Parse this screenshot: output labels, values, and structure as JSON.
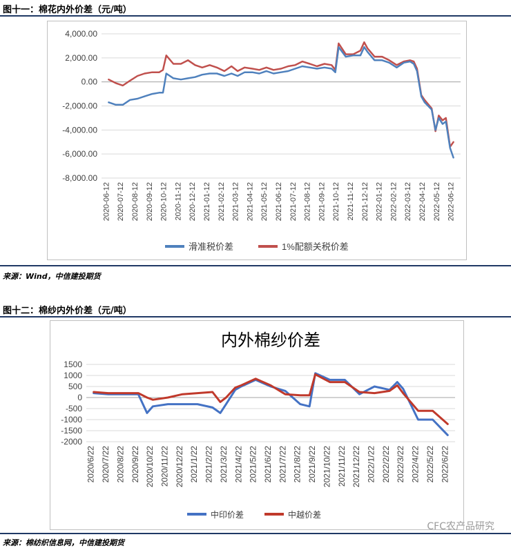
{
  "figures": [
    {
      "caption": "图十一：棉花内外价差（元/吨）",
      "source": "来源：Wind，中信建投期货"
    },
    {
      "caption": "图十二：棉纱内外价差（元/吨）",
      "source": "来源：棉纺织信息网，中信建投期货"
    }
  ],
  "watermark": "CFC农产品研究",
  "chart_data": [
    {
      "type": "line",
      "title": "",
      "xlabel": "",
      "ylabel": "",
      "ylim": [
        -8000,
        4000
      ],
      "y_ticks": [
        "4,000.00",
        "2,000.00",
        "0.00",
        "-2,000.00",
        "-4,000.00",
        "-6,000.00",
        "-8,000.00"
      ],
      "x_ticks": [
        "2020-06-12",
        "2020-07-12",
        "2020-08-12",
        "2020-09-12",
        "2020-10-12",
        "2020-11-12",
        "2020-12-12",
        "2021-01-12",
        "2021-02-12",
        "2021-03-12",
        "2021-04-12",
        "2021-05-12",
        "2021-06-12",
        "2021-07-12",
        "2021-08-12",
        "2021-09-12",
        "2021-10-12",
        "2021-11-12",
        "2021-12-12",
        "2022-01-12",
        "2022-02-12",
        "2022-03-12",
        "2022-04-12",
        "2022-05-12",
        "2022-06-12"
      ],
      "grid": "horizontal",
      "legend": "bottom",
      "colors": [
        "#4f81bd",
        "#c0504d"
      ],
      "series": [
        {
          "name": "滑准税价差",
          "x": [
            "2020-06-12",
            "2020-06-27",
            "2020-07-12",
            "2020-07-27",
            "2020-08-12",
            "2020-08-27",
            "2020-09-12",
            "2020-09-27",
            "2020-10-05",
            "2020-10-12",
            "2020-10-27",
            "2020-11-12",
            "2020-11-27",
            "2020-12-12",
            "2020-12-27",
            "2021-01-12",
            "2021-01-27",
            "2021-02-12",
            "2021-02-27",
            "2021-03-12",
            "2021-03-27",
            "2021-04-12",
            "2021-04-27",
            "2021-05-12",
            "2021-05-27",
            "2021-06-12",
            "2021-06-27",
            "2021-07-12",
            "2021-07-27",
            "2021-08-12",
            "2021-08-27",
            "2021-09-12",
            "2021-09-27",
            "2021-10-05",
            "2021-10-12",
            "2021-10-27",
            "2021-11-12",
            "2021-11-27",
            "2021-12-05",
            "2021-12-12",
            "2021-12-27",
            "2022-01-12",
            "2022-01-27",
            "2022-02-12",
            "2022-02-27",
            "2022-03-12",
            "2022-03-20",
            "2022-03-27",
            "2022-04-05",
            "2022-04-12",
            "2022-04-27",
            "2022-05-05",
            "2022-05-12",
            "2022-05-20",
            "2022-05-27",
            "2022-06-05",
            "2022-06-12"
          ],
          "values": [
            -1700,
            -1900,
            -1900,
            -1500,
            -1400,
            -1200,
            -1000,
            -900,
            -900,
            700,
            300,
            200,
            300,
            400,
            600,
            700,
            700,
            500,
            700,
            500,
            800,
            800,
            700,
            900,
            700,
            800,
            900,
            1100,
            1300,
            1200,
            1100,
            1200,
            1100,
            800,
            2900,
            2100,
            2200,
            2200,
            2900,
            2500,
            1800,
            1800,
            1600,
            1200,
            1600,
            1700,
            1500,
            900,
            -1200,
            -1700,
            -2300,
            -4000,
            -3000,
            -3500,
            -3300,
            -5500,
            -6300
          ]
        },
        {
          "name": "1%配额关税价差",
          "x": [
            "2020-06-12",
            "2020-06-27",
            "2020-07-12",
            "2020-07-27",
            "2020-08-12",
            "2020-08-27",
            "2020-09-12",
            "2020-09-27",
            "2020-10-05",
            "2020-10-12",
            "2020-10-27",
            "2020-11-12",
            "2020-11-27",
            "2020-12-12",
            "2020-12-27",
            "2021-01-12",
            "2021-01-27",
            "2021-02-12",
            "2021-02-27",
            "2021-03-12",
            "2021-03-27",
            "2021-04-12",
            "2021-04-27",
            "2021-05-12",
            "2021-05-27",
            "2021-06-12",
            "2021-06-27",
            "2021-07-12",
            "2021-07-27",
            "2021-08-12",
            "2021-08-27",
            "2021-09-12",
            "2021-09-27",
            "2021-10-05",
            "2021-10-12",
            "2021-10-27",
            "2021-11-12",
            "2021-11-27",
            "2021-12-05",
            "2021-12-12",
            "2021-12-27",
            "2022-01-12",
            "2022-01-27",
            "2022-02-12",
            "2022-02-27",
            "2022-03-12",
            "2022-03-20",
            "2022-03-27",
            "2022-04-05",
            "2022-04-12",
            "2022-04-27",
            "2022-05-05",
            "2022-05-12",
            "2022-05-20",
            "2022-05-27",
            "2022-06-05",
            "2022-06-12"
          ],
          "values": [
            200,
            -100,
            -300,
            100,
            500,
            700,
            800,
            800,
            1000,
            2200,
            1500,
            1500,
            1800,
            1400,
            1200,
            1400,
            1200,
            900,
            1300,
            900,
            1200,
            1100,
            1000,
            1200,
            1000,
            1100,
            1300,
            1400,
            1700,
            1500,
            1300,
            1500,
            1400,
            1000,
            3200,
            2300,
            2300,
            2600,
            3300,
            2800,
            2100,
            2100,
            1800,
            1400,
            1700,
            1800,
            1700,
            1100,
            -1100,
            -1500,
            -2200,
            -4100,
            -2800,
            -3200,
            -3000,
            -5400,
            -5000
          ]
        }
      ]
    },
    {
      "type": "line",
      "title": "内外棉纱价差",
      "xlabel": "",
      "ylabel": "",
      "ylim": [
        -2000,
        1500
      ],
      "y_ticks": [
        "1500",
        "1000",
        "500",
        "0",
        "-500",
        "-1000",
        "-1500",
        "-2000"
      ],
      "x_ticks": [
        "2020/6/22",
        "2020/7/22",
        "2020/8/22",
        "2020/9/22",
        "2020/10/22",
        "2020/11/22",
        "2020/12/22",
        "2021/1/22",
        "2021/2/22",
        "2021/3/22",
        "2021/4/22",
        "2021/5/22",
        "2021/6/22",
        "2021/7/22",
        "2021/8/22",
        "2021/9/22",
        "2021/10/22",
        "2021/11/22",
        "2021/12/22",
        "2022/1/22",
        "2022/2/22",
        "2022/3/22",
        "2022/4/22",
        "2022/5/22",
        "2022/6/22"
      ],
      "grid": "horizontal",
      "legend": "bottom",
      "colors": [
        "#4472c4",
        "#c0392b"
      ],
      "series": [
        {
          "name": "中印价差",
          "x": [
            "2020-06-22",
            "2020-07-22",
            "2020-08-22",
            "2020-09-22",
            "2020-10-10",
            "2020-10-22",
            "2020-11-22",
            "2020-12-22",
            "2021-01-22",
            "2021-02-22",
            "2021-03-10",
            "2021-03-22",
            "2021-04-10",
            "2021-04-22",
            "2021-05-22",
            "2021-06-22",
            "2021-07-22",
            "2021-08-22",
            "2021-09-10",
            "2021-09-22",
            "2021-10-22",
            "2021-11-22",
            "2021-12-22",
            "2022-01-22",
            "2022-02-22",
            "2022-03-10",
            "2022-03-22",
            "2022-04-22",
            "2022-05-22",
            "2022-06-22"
          ],
          "values": [
            200,
            150,
            150,
            150,
            -700,
            -400,
            -300,
            -300,
            -300,
            -450,
            -700,
            -300,
            350,
            500,
            800,
            500,
            300,
            -300,
            -400,
            1100,
            800,
            800,
            150,
            500,
            350,
            700,
            400,
            -1000,
            -1000,
            -1700
          ]
        },
        {
          "name": "中越价差",
          "x": [
            "2020-06-22",
            "2020-07-22",
            "2020-08-22",
            "2020-09-22",
            "2020-10-10",
            "2020-10-22",
            "2020-11-22",
            "2020-12-22",
            "2021-01-22",
            "2021-02-22",
            "2021-03-10",
            "2021-03-22",
            "2021-04-10",
            "2021-04-22",
            "2021-05-22",
            "2021-06-22",
            "2021-07-22",
            "2021-08-22",
            "2021-09-10",
            "2021-09-22",
            "2021-10-22",
            "2021-11-22",
            "2021-12-22",
            "2022-01-22",
            "2022-02-22",
            "2022-03-10",
            "2022-03-22",
            "2022-04-22",
            "2022-05-22",
            "2022-06-22"
          ],
          "values": [
            250,
            200,
            200,
            200,
            0,
            -100,
            0,
            150,
            200,
            250,
            -200,
            0,
            450,
            550,
            850,
            550,
            150,
            100,
            100,
            1050,
            700,
            700,
            250,
            200,
            300,
            550,
            200,
            -600,
            -600,
            -1200
          ]
        }
      ]
    }
  ]
}
